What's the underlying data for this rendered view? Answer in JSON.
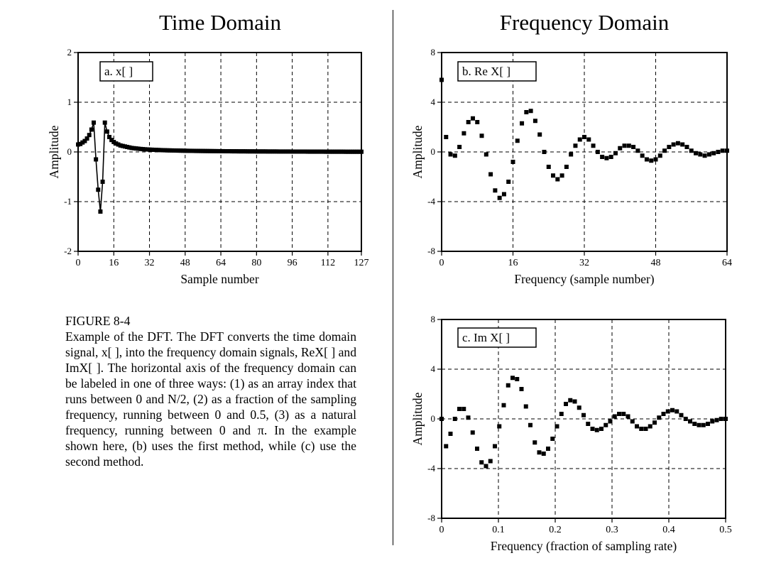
{
  "headings": {
    "time": "Time Domain",
    "frequency": "Frequency Domain"
  },
  "caption": {
    "figure_label": "FIGURE 8-4",
    "body": "Example of the DFT. The DFT converts the time domain signal, x[ ], into the frequency domain signals, ReX[ ] and ImX[ ]. The horizontal axis of the frequency domain can be labeled in one of three ways: (1) as an array index that runs between 0 and N/2, (2) as a fraction of the sampling frequency, running between 0 and 0.5, (3) as a natural frequency, running between 0 and π. In the example shown here, (b) uses the first method, while (c) use the second method."
  },
  "chart_data": [
    {
      "id": "a",
      "type": "line",
      "label": "a.  x[ ]",
      "xlabel": "Sample number",
      "ylabel": "Amplitude",
      "xlim": [
        0,
        127
      ],
      "ylim": [
        -2,
        2
      ],
      "xticks": [
        0,
        16,
        32,
        48,
        64,
        80,
        96,
        112,
        127
      ],
      "yticks": [
        -2,
        -1,
        0,
        1,
        2
      ],
      "grid": true,
      "markers": true,
      "x": [
        0,
        1,
        2,
        3,
        4,
        5,
        6,
        7,
        8,
        9,
        10,
        11,
        12,
        13,
        14,
        15,
        16,
        17,
        18,
        19,
        20,
        21,
        22,
        23,
        24,
        25,
        26,
        27,
        28,
        29,
        30,
        31,
        32,
        33,
        34,
        35,
        36,
        37,
        38,
        39,
        40,
        41,
        42,
        43,
        44,
        45,
        46,
        47,
        48,
        49,
        50,
        51,
        52,
        53,
        54,
        55,
        56,
        57,
        58,
        59,
        60,
        61,
        62,
        63,
        64,
        65,
        66,
        67,
        68,
        69,
        70,
        71,
        72,
        73,
        74,
        75,
        76,
        77,
        78,
        79,
        80,
        81,
        82,
        83,
        84,
        85,
        86,
        87,
        88,
        89,
        90,
        91,
        92,
        93,
        94,
        95,
        96,
        97,
        98,
        99,
        100,
        101,
        102,
        103,
        104,
        105,
        106,
        107,
        108,
        109,
        110,
        111,
        112,
        113,
        114,
        115,
        116,
        117,
        118,
        119,
        120,
        121,
        122,
        123,
        124,
        125,
        126,
        127
      ],
      "y": [
        0.15,
        0.16,
        0.19,
        0.22,
        0.27,
        0.34,
        0.45,
        0.59,
        -0.15,
        -0.76,
        -1.2,
        -0.6,
        0.59,
        0.41,
        0.3,
        0.24,
        0.2,
        0.17,
        0.15,
        0.13,
        0.12,
        0.11,
        0.1,
        0.09,
        0.08,
        0.075,
        0.07,
        0.065,
        0.06,
        0.056,
        0.053,
        0.05,
        0.047,
        0.045,
        0.043,
        0.041,
        0.039,
        0.037,
        0.035,
        0.034,
        0.032,
        0.031,
        0.03,
        0.029,
        0.028,
        0.027,
        0.026,
        0.025,
        0.024,
        0.023,
        0.022,
        0.022,
        0.021,
        0.02,
        0.02,
        0.019,
        0.019,
        0.018,
        0.018,
        0.017,
        0.017,
        0.016,
        0.016,
        0.015,
        0.015,
        0.015,
        0.014,
        0.014,
        0.014,
        0.013,
        0.013,
        0.013,
        0.012,
        0.012,
        0.012,
        0.012,
        0.011,
        0.011,
        0.011,
        0.011,
        0.01,
        0.01,
        0.01,
        0.01,
        0.01,
        0.009,
        0.009,
        0.009,
        0.009,
        0.009,
        0.008,
        0.008,
        0.008,
        0.008,
        0.008,
        0.008,
        0.007,
        0.007,
        0.007,
        0.007,
        0.007,
        0.007,
        0.007,
        0.006,
        0.006,
        0.006,
        0.006,
        0.006,
        0.006,
        0.006,
        0.006,
        0.005,
        0.005,
        0.005,
        0.005,
        0.005,
        0.005,
        0.005,
        0.005,
        0.005,
        0.004,
        0.004,
        0.004,
        0.004,
        0.004,
        0.004,
        0.004,
        0.004
      ]
    },
    {
      "id": "b",
      "type": "scatter",
      "label": "b.  Re X[ ]",
      "xlabel": "Frequency (sample number)",
      "ylabel": "Amplitude",
      "xlim": [
        0,
        64
      ],
      "ylim": [
        -8,
        8
      ],
      "xticks": [
        0,
        16,
        32,
        48,
        64
      ],
      "yticks": [
        -8,
        -4,
        0,
        4,
        8
      ],
      "grid": true,
      "x": [
        0,
        1,
        2,
        3,
        4,
        5,
        6,
        7,
        8,
        9,
        10,
        11,
        12,
        13,
        14,
        15,
        16,
        17,
        18,
        19,
        20,
        21,
        22,
        23,
        24,
        25,
        26,
        27,
        28,
        29,
        30,
        31,
        32,
        33,
        34,
        35,
        36,
        37,
        38,
        39,
        40,
        41,
        42,
        43,
        44,
        45,
        46,
        47,
        48,
        49,
        50,
        51,
        52,
        53,
        54,
        55,
        56,
        57,
        58,
        59,
        60,
        61,
        62,
        63,
        64
      ],
      "y": [
        5.8,
        1.2,
        -0.2,
        -0.3,
        0.4,
        1.5,
        2.4,
        2.7,
        2.4,
        1.3,
        -0.2,
        -1.8,
        -3.1,
        -3.7,
        -3.4,
        -2.4,
        -0.8,
        0.9,
        2.3,
        3.2,
        3.3,
        2.5,
        1.4,
        0.0,
        -1.2,
        -1.9,
        -2.2,
        -1.9,
        -1.2,
        -0.2,
        0.5,
        1.0,
        1.2,
        1.0,
        0.5,
        0.0,
        -0.4,
        -0.5,
        -0.4,
        -0.1,
        0.3,
        0.5,
        0.5,
        0.4,
        0.1,
        -0.3,
        -0.6,
        -0.7,
        -0.6,
        -0.3,
        0.1,
        0.4,
        0.6,
        0.7,
        0.6,
        0.4,
        0.1,
        -0.1,
        -0.2,
        -0.3,
        -0.2,
        -0.1,
        0.0,
        0.1,
        0.1
      ]
    },
    {
      "id": "c",
      "type": "scatter",
      "label": "c.  Im X[ ]",
      "xlabel": "Frequency (fraction of sampling rate)",
      "ylabel": "Amplitude",
      "xlim": [
        0,
        0.5
      ],
      "ylim": [
        -8,
        8
      ],
      "xticks": [
        0,
        0.1,
        0.2,
        0.3,
        0.4,
        0.5
      ],
      "yticks": [
        -8,
        -4,
        0,
        4,
        8
      ],
      "grid": true,
      "x": [
        0,
        0.0078125,
        0.015625,
        0.0234375,
        0.03125,
        0.0390625,
        0.046875,
        0.0546875,
        0.0625,
        0.0703125,
        0.078125,
        0.0859375,
        0.09375,
        0.1015625,
        0.109375,
        0.1171875,
        0.125,
        0.1328125,
        0.140625,
        0.1484375,
        0.15625,
        0.1640625,
        0.171875,
        0.1796875,
        0.1875,
        0.1953125,
        0.203125,
        0.2109375,
        0.21875,
        0.2265625,
        0.234375,
        0.2421875,
        0.25,
        0.2578125,
        0.265625,
        0.2734375,
        0.28125,
        0.2890625,
        0.296875,
        0.3046875,
        0.3125,
        0.3203125,
        0.328125,
        0.3359375,
        0.34375,
        0.3515625,
        0.359375,
        0.3671875,
        0.375,
        0.3828125,
        0.390625,
        0.3984375,
        0.40625,
        0.4140625,
        0.421875,
        0.4296875,
        0.4375,
        0.4453125,
        0.453125,
        0.4609375,
        0.46875,
        0.4765625,
        0.484375,
        0.4921875,
        0.5
      ],
      "y": [
        0.0,
        -2.2,
        -1.2,
        0.0,
        0.8,
        0.8,
        0.1,
        -1.1,
        -2.4,
        -3.5,
        -3.8,
        -3.4,
        -2.2,
        -0.6,
        1.1,
        2.7,
        3.3,
        3.2,
        2.4,
        1.0,
        -0.5,
        -1.9,
        -2.7,
        -2.8,
        -2.4,
        -1.6,
        -0.6,
        0.4,
        1.2,
        1.5,
        1.4,
        0.9,
        0.3,
        -0.4,
        -0.8,
        -0.9,
        -0.8,
        -0.5,
        -0.2,
        0.2,
        0.4,
        0.4,
        0.2,
        -0.2,
        -0.6,
        -0.8,
        -0.8,
        -0.6,
        -0.3,
        0.1,
        0.4,
        0.6,
        0.7,
        0.6,
        0.3,
        0.0,
        -0.2,
        -0.4,
        -0.5,
        -0.5,
        -0.4,
        -0.2,
        -0.1,
        0.0,
        0.0
      ]
    }
  ]
}
